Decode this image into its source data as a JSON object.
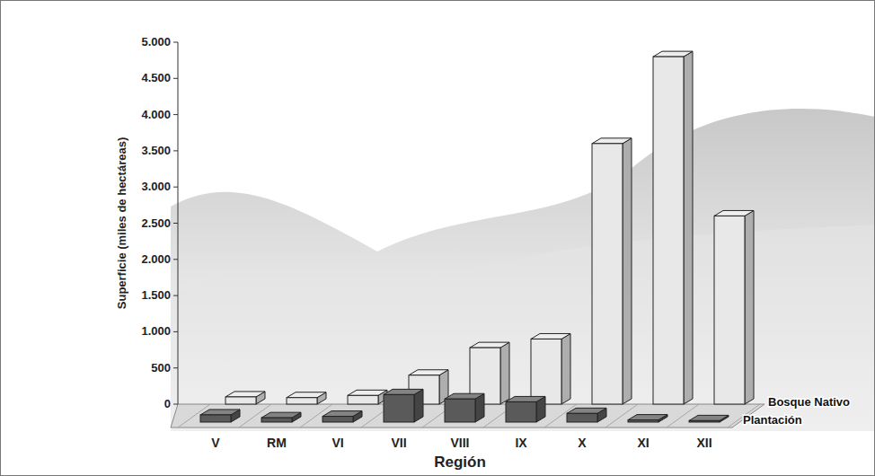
{
  "chart_data": {
    "type": "bar",
    "x_label": "Región",
    "y_label": "Superficie (miles de hectáreas)",
    "categories": [
      "V",
      "RM",
      "VI",
      "VII",
      "VIII",
      "IX",
      "X",
      "XI",
      "XII"
    ],
    "series": [
      {
        "name": "Bosque Nativo",
        "color": "#e8e8e8",
        "values": [
          100,
          90,
          120,
          400,
          780,
          900,
          3600,
          4800,
          2600
        ]
      },
      {
        "name": "Plantación",
        "color": "#5a5a5a",
        "values": [
          100,
          60,
          80,
          380,
          320,
          280,
          120,
          30,
          20
        ]
      }
    ],
    "ylim": [
      0,
      5000
    ],
    "yticks": [
      0,
      500,
      {
        "value": 1000,
        "label": "1.000"
      },
      {
        "value": 1500,
        "label": "1.500"
      },
      {
        "value": 2000,
        "label": "2.000"
      },
      {
        "value": 2500,
        "label": "2.500"
      },
      {
        "value": 3000,
        "label": "3.000"
      },
      {
        "value": 3500,
        "label": "3.500"
      },
      {
        "value": 4000,
        "label": "4.000"
      },
      {
        "value": 4500,
        "label": "4.500"
      },
      {
        "value": 5000,
        "label": "5.000"
      }
    ],
    "grid": false,
    "legend": "right"
  }
}
